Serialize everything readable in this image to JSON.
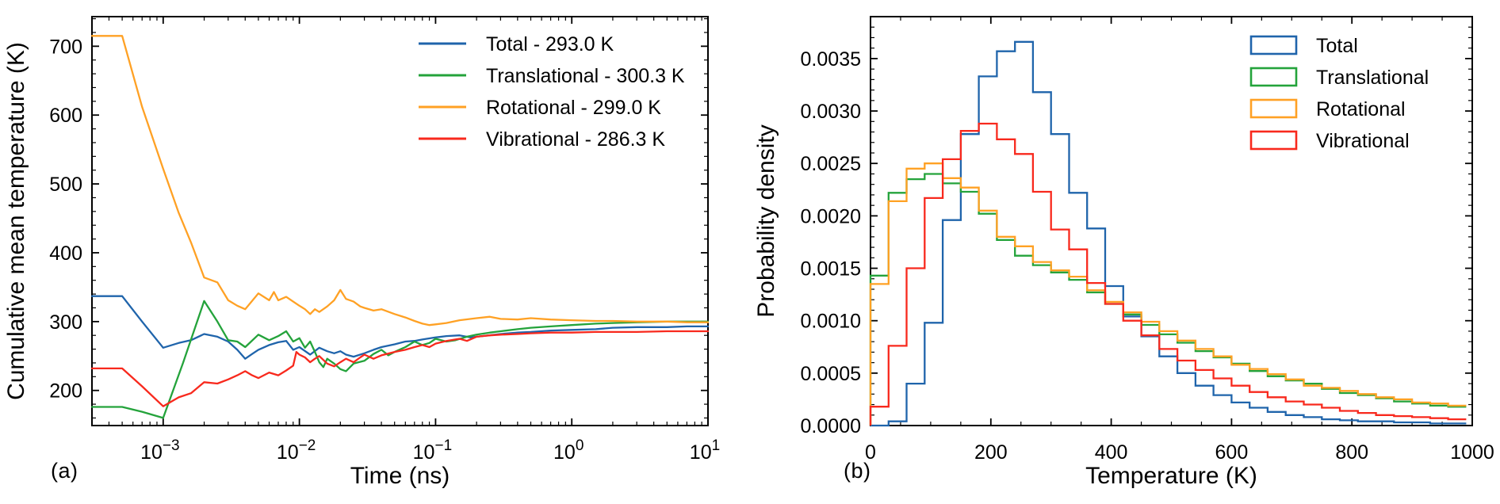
{
  "figure": {
    "panel_a_tag": "(a)",
    "panel_b_tag": "(b)",
    "background": "#ffffff",
    "text_color": "#000000"
  },
  "chart_data": [
    {
      "id": "cumulative-mean-temperature",
      "type": "line",
      "title": "",
      "xlabel": "Time (ns)",
      "ylabel": "Cumulative mean temperature (K)",
      "x_scale": "log",
      "xlim": [
        0.0003,
        10
      ],
      "ylim": [
        149,
        743
      ],
      "xticks": [
        0.001,
        0.01,
        0.1,
        1,
        10
      ],
      "yticks": [
        200,
        300,
        400,
        500,
        600,
        700
      ],
      "grid": false,
      "legend_position": "upper right",
      "series": [
        {
          "name": "Total - 293.0 K",
          "color": "#1f64ab",
          "points": [
            [
              0.0003,
              337
            ],
            [
              0.0005,
              337
            ],
            [
              0.0007,
              300
            ],
            [
              0.001,
              262
            ],
            [
              0.0013,
              269
            ],
            [
              0.0016,
              273
            ],
            [
              0.002,
              282
            ],
            [
              0.0025,
              278
            ],
            [
              0.003,
              271
            ],
            [
              0.0035,
              259
            ],
            [
              0.004,
              246
            ],
            [
              0.0045,
              253
            ],
            [
              0.005,
              259
            ],
            [
              0.006,
              266
            ],
            [
              0.007,
              270
            ],
            [
              0.008,
              272
            ],
            [
              0.009,
              259
            ],
            [
              0.01,
              263
            ],
            [
              0.012,
              252
            ],
            [
              0.014,
              262
            ],
            [
              0.016,
              257
            ],
            [
              0.018,
              254
            ],
            [
              0.02,
              257
            ],
            [
              0.022,
              252
            ],
            [
              0.025,
              249
            ],
            [
              0.03,
              254
            ],
            [
              0.035,
              259
            ],
            [
              0.04,
              263
            ],
            [
              0.05,
              267
            ],
            [
              0.06,
              271
            ],
            [
              0.07,
              272
            ],
            [
              0.08,
              274
            ],
            [
              0.1,
              277
            ],
            [
              0.12,
              279
            ],
            [
              0.15,
              280
            ],
            [
              0.18,
              277
            ],
            [
              0.22,
              279
            ],
            [
              0.3,
              282
            ],
            [
              0.4,
              284
            ],
            [
              0.5,
              285
            ],
            [
              0.7,
              287
            ],
            [
              1,
              288
            ],
            [
              1.5,
              289
            ],
            [
              2,
              291
            ],
            [
              3,
              292
            ],
            [
              5,
              292
            ],
            [
              7,
              293
            ],
            [
              10,
              293
            ]
          ]
        },
        {
          "name": "Translational - 300.3 K",
          "color": "#24a33b",
          "points": [
            [
              0.0003,
              176
            ],
            [
              0.0005,
              176
            ],
            [
              0.0007,
              169
            ],
            [
              0.001,
              160
            ],
            [
              0.0014,
              240
            ],
            [
              0.002,
              330
            ],
            [
              0.0025,
              300
            ],
            [
              0.003,
              273
            ],
            [
              0.0035,
              271
            ],
            [
              0.004,
              263
            ],
            [
              0.005,
              281
            ],
            [
              0.006,
              273
            ],
            [
              0.007,
              279
            ],
            [
              0.008,
              286
            ],
            [
              0.009,
              271
            ],
            [
              0.01,
              276
            ],
            [
              0.011,
              262
            ],
            [
              0.012,
              271
            ],
            [
              0.013,
              256
            ],
            [
              0.014,
              241
            ],
            [
              0.015,
              234
            ],
            [
              0.016,
              246
            ],
            [
              0.018,
              239
            ],
            [
              0.02,
              231
            ],
            [
              0.022,
              228
            ],
            [
              0.025,
              239
            ],
            [
              0.03,
              243
            ],
            [
              0.035,
              253
            ],
            [
              0.04,
              259
            ],
            [
              0.045,
              251
            ],
            [
              0.05,
              256
            ],
            [
              0.06,
              263
            ],
            [
              0.07,
              271
            ],
            [
              0.08,
              266
            ],
            [
              0.09,
              269
            ],
            [
              0.1,
              275
            ],
            [
              0.12,
              271
            ],
            [
              0.14,
              273
            ],
            [
              0.17,
              278
            ],
            [
              0.2,
              281
            ],
            [
              0.25,
              284
            ],
            [
              0.3,
              286
            ],
            [
              0.4,
              289
            ],
            [
              0.5,
              291
            ],
            [
              0.7,
              293
            ],
            [
              1,
              295
            ],
            [
              1.5,
              297
            ],
            [
              2,
              298
            ],
            [
              3,
              299
            ],
            [
              5,
              300
            ],
            [
              7,
              300
            ],
            [
              10,
              300
            ]
          ]
        },
        {
          "name": "Rotational - 299.0 K",
          "color": "#ffa124",
          "points": [
            [
              0.0003,
              715
            ],
            [
              0.0005,
              715
            ],
            [
              0.0007,
              612
            ],
            [
              0.001,
              522
            ],
            [
              0.0013,
              458
            ],
            [
              0.0016,
              415
            ],
            [
              0.002,
              364
            ],
            [
              0.0025,
              357
            ],
            [
              0.003,
              331
            ],
            [
              0.0035,
              323
            ],
            [
              0.004,
              318
            ],
            [
              0.005,
              341
            ],
            [
              0.006,
              331
            ],
            [
              0.0065,
              343
            ],
            [
              0.007,
              331
            ],
            [
              0.008,
              336
            ],
            [
              0.009,
              329
            ],
            [
              0.01,
              323
            ],
            [
              0.011,
              318
            ],
            [
              0.012,
              311
            ],
            [
              0.013,
              318
            ],
            [
              0.014,
              314
            ],
            [
              0.016,
              322
            ],
            [
              0.018,
              331
            ],
            [
              0.02,
              346
            ],
            [
              0.022,
              333
            ],
            [
              0.025,
              329
            ],
            [
              0.028,
              322
            ],
            [
              0.03,
              320
            ],
            [
              0.035,
              316
            ],
            [
              0.04,
              318
            ],
            [
              0.05,
              311
            ],
            [
              0.06,
              306
            ],
            [
              0.07,
              301
            ],
            [
              0.08,
              297
            ],
            [
              0.09,
              295
            ],
            [
              0.1,
              296
            ],
            [
              0.12,
              298
            ],
            [
              0.15,
              302
            ],
            [
              0.2,
              305
            ],
            [
              0.25,
              307
            ],
            [
              0.3,
              304
            ],
            [
              0.4,
              303
            ],
            [
              0.5,
              305
            ],
            [
              0.7,
              303
            ],
            [
              1,
              302
            ],
            [
              1.5,
              301
            ],
            [
              2,
              301
            ],
            [
              3,
              300
            ],
            [
              5,
              300
            ],
            [
              7,
              299
            ],
            [
              10,
              299
            ]
          ]
        },
        {
          "name": "Vibrational - 286.3 K",
          "color": "#f8291d",
          "points": [
            [
              0.0003,
              232
            ],
            [
              0.0005,
              232
            ],
            [
              0.0007,
              206
            ],
            [
              0.001,
              177
            ],
            [
              0.0013,
              190
            ],
            [
              0.0016,
              196
            ],
            [
              0.002,
              212
            ],
            [
              0.0025,
              210
            ],
            [
              0.003,
              216
            ],
            [
              0.0035,
              222
            ],
            [
              0.004,
              228
            ],
            [
              0.0045,
              222
            ],
            [
              0.005,
              218
            ],
            [
              0.006,
              226
            ],
            [
              0.007,
              222
            ],
            [
              0.008,
              229
            ],
            [
              0.009,
              236
            ],
            [
              0.0095,
              256
            ],
            [
              0.01,
              252
            ],
            [
              0.011,
              248
            ],
            [
              0.012,
              241
            ],
            [
              0.013,
              246
            ],
            [
              0.014,
              250
            ],
            [
              0.016,
              239
            ],
            [
              0.018,
              235
            ],
            [
              0.02,
              241
            ],
            [
              0.022,
              246
            ],
            [
              0.025,
              241
            ],
            [
              0.028,
              248
            ],
            [
              0.03,
              252
            ],
            [
              0.035,
              246
            ],
            [
              0.04,
              251
            ],
            [
              0.05,
              256
            ],
            [
              0.06,
              259
            ],
            [
              0.07,
              263
            ],
            [
              0.08,
              266
            ],
            [
              0.09,
              263
            ],
            [
              0.1,
              268
            ],
            [
              0.12,
              272
            ],
            [
              0.15,
              275
            ],
            [
              0.17,
              272
            ],
            [
              0.2,
              278
            ],
            [
              0.25,
              280
            ],
            [
              0.3,
              281
            ],
            [
              0.4,
              282
            ],
            [
              0.5,
              283
            ],
            [
              0.7,
              284
            ],
            [
              1,
              284
            ],
            [
              1.5,
              285
            ],
            [
              2,
              285
            ],
            [
              3,
              285
            ],
            [
              5,
              286
            ],
            [
              7,
              286
            ],
            [
              10,
              286
            ]
          ]
        }
      ]
    },
    {
      "id": "temperature-probability-density",
      "type": "histogram-step",
      "title": "",
      "xlabel": "Temperature (K)",
      "ylabel": "Probability density",
      "x_scale": "linear",
      "xlim": [
        0,
        1000
      ],
      "ylim": [
        0,
        0.0039
      ],
      "xticks": [
        0,
        200,
        400,
        600,
        800,
        1000
      ],
      "yticks": [
        0.0,
        0.0005,
        0.001,
        0.0015,
        0.002,
        0.0025,
        0.003,
        0.0035
      ],
      "grid": false,
      "legend_position": "upper right",
      "bin_start": 0,
      "bin_width": 30,
      "series": [
        {
          "name": "Total",
          "color": "#1f64ab",
          "values": [
            0.0,
            4e-05,
            0.0004,
            0.00098,
            0.00196,
            0.00278,
            0.00333,
            0.00357,
            0.00366,
            0.00318,
            0.00278,
            0.00222,
            0.00188,
            0.00133,
            0.00104,
            0.00085,
            0.00066,
            0.0005,
            0.00038,
            0.00029,
            0.00022,
            0.00017,
            0.00013,
            0.0001,
            8e-05,
            6e-05,
            5e-05,
            4e-05,
            4e-05,
            3e-05,
            3e-05,
            2e-05,
            2e-05
          ]
        },
        {
          "name": "Translational",
          "color": "#24a33b",
          "values": [
            0.00143,
            0.00222,
            0.00235,
            0.0024,
            0.00231,
            0.00223,
            0.00202,
            0.00177,
            0.00162,
            0.00153,
            0.00146,
            0.00139,
            0.00127,
            0.00116,
            0.00106,
            0.00096,
            0.00087,
            0.00079,
            0.00071,
            0.00065,
            0.00059,
            0.00052,
            0.00047,
            0.00043,
            0.0004,
            0.00035,
            0.00031,
            0.00029,
            0.00026,
            0.00023,
            0.00021,
            0.00019,
            0.00018
          ]
        },
        {
          "name": "Rotational",
          "color": "#ffa124",
          "values": [
            0.00135,
            0.00214,
            0.00245,
            0.0025,
            0.00236,
            0.00227,
            0.00205,
            0.0018,
            0.00171,
            0.00156,
            0.00148,
            0.00142,
            0.00129,
            0.00118,
            0.00108,
            0.00099,
            0.0009,
            0.00081,
            0.00073,
            0.00066,
            0.00058,
            0.00054,
            0.00049,
            0.00044,
            0.00038,
            0.00036,
            0.00033,
            0.0003,
            0.00027,
            0.00025,
            0.00022,
            0.00021,
            0.00019
          ]
        },
        {
          "name": "Vibrational",
          "color": "#f8291d",
          "values": [
            0.00018,
            0.00076,
            0.0015,
            0.00217,
            0.00254,
            0.00281,
            0.00288,
            0.00273,
            0.00259,
            0.00223,
            0.00187,
            0.00168,
            0.00136,
            0.00116,
            0.001,
            0.00086,
            0.00073,
            0.00062,
            0.00053,
            0.00045,
            0.00038,
            0.00032,
            0.00027,
            0.00023,
            0.0002,
            0.00017,
            0.00014,
            0.00012,
            0.0001,
            9e-05,
            8e-05,
            7e-05,
            6e-05
          ]
        }
      ]
    }
  ]
}
